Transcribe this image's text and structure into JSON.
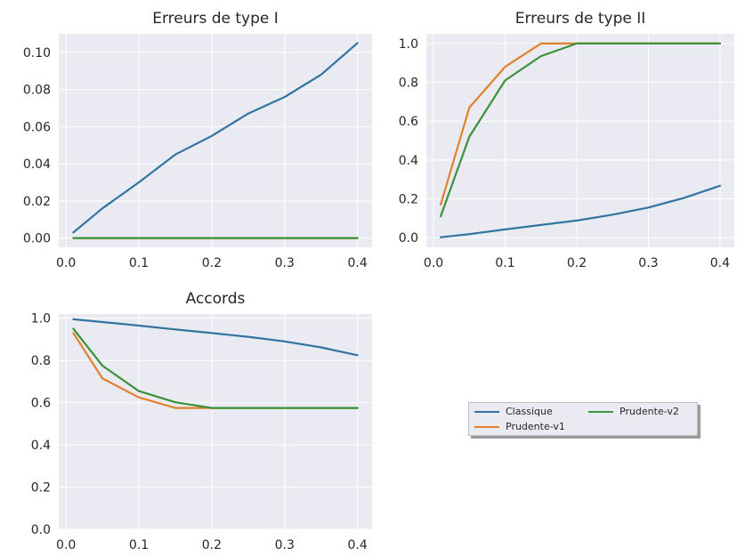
{
  "chart_data": [
    {
      "type": "line",
      "title": "Erreurs de type I",
      "xlabel": "",
      "ylabel": "",
      "xlim": [
        -0.01,
        0.42
      ],
      "ylim": [
        -0.005,
        0.11
      ],
      "xticks": [
        0.0,
        0.1,
        0.2,
        0.3,
        0.4
      ],
      "xtick_labels": [
        "0.0",
        "0.1",
        "0.2",
        "0.3",
        "0.4"
      ],
      "yticks": [
        0.0,
        0.02,
        0.04,
        0.06,
        0.08,
        0.1
      ],
      "ytick_labels": [
        "0.00",
        "0.02",
        "0.04",
        "0.06",
        "0.08",
        "0.10"
      ],
      "grid": true,
      "x": [
        0.01,
        0.05,
        0.1,
        0.15,
        0.2,
        0.25,
        0.3,
        0.35,
        0.4
      ],
      "series": [
        {
          "name": "Classique",
          "color": "#3274a1",
          "values": [
            0.003,
            0.016,
            0.03,
            0.045,
            0.055,
            0.067,
            0.076,
            0.088,
            0.105
          ]
        },
        {
          "name": "Prudente-v1",
          "color": "#e1812c",
          "values": [
            0,
            0,
            0,
            0,
            0,
            0,
            0,
            0,
            0
          ]
        },
        {
          "name": "Prudente-v2",
          "color": "#3a923a",
          "values": [
            0,
            0,
            0,
            0,
            0,
            0,
            0,
            0,
            0
          ]
        }
      ]
    },
    {
      "type": "line",
      "title": "Erreurs de type II",
      "xlabel": "",
      "ylabel": "",
      "xlim": [
        -0.01,
        0.42
      ],
      "ylim": [
        -0.05,
        1.05
      ],
      "xticks": [
        0.0,
        0.1,
        0.2,
        0.3,
        0.4
      ],
      "xtick_labels": [
        "0.0",
        "0.1",
        "0.2",
        "0.3",
        "0.4"
      ],
      "yticks": [
        0.0,
        0.2,
        0.4,
        0.6,
        0.8,
        1.0
      ],
      "ytick_labels": [
        "0.0",
        "0.2",
        "0.4",
        "0.6",
        "0.8",
        "1.0"
      ],
      "grid": true,
      "x": [
        0.01,
        0.05,
        0.1,
        0.15,
        0.2,
        0.25,
        0.3,
        0.35,
        0.4
      ],
      "series": [
        {
          "name": "Classique",
          "color": "#3274a1",
          "values": [
            0.002,
            0.018,
            0.042,
            0.065,
            0.088,
            0.118,
            0.155,
            0.205,
            0.267
          ]
        },
        {
          "name": "Prudente-v1",
          "color": "#e1812c",
          "values": [
            0.17,
            0.67,
            0.88,
            1.0,
            1.0,
            1.0,
            1.0,
            1.0,
            1.0
          ]
        },
        {
          "name": "Prudente-v2",
          "color": "#3a923a",
          "values": [
            0.11,
            0.52,
            0.81,
            0.935,
            1.0,
            1.0,
            1.0,
            1.0,
            1.0
          ]
        }
      ]
    },
    {
      "type": "line",
      "title": "Accords",
      "xlabel": "",
      "ylabel": "",
      "xlim": [
        -0.01,
        0.42
      ],
      "ylim": [
        0.0,
        1.02
      ],
      "xticks": [
        0.0,
        0.1,
        0.2,
        0.3,
        0.4
      ],
      "xtick_labels": [
        "0.0",
        "0.1",
        "0.2",
        "0.3",
        "0.4"
      ],
      "yticks": [
        0.0,
        0.2,
        0.4,
        0.6,
        0.8,
        1.0
      ],
      "ytick_labels": [
        "0.0",
        "0.2",
        "0.4",
        "0.6",
        "0.8",
        "1.0"
      ],
      "grid": true,
      "x": [
        0.01,
        0.05,
        0.1,
        0.15,
        0.2,
        0.25,
        0.3,
        0.35,
        0.4
      ],
      "series": [
        {
          "name": "Classique",
          "color": "#3274a1",
          "values": [
            0.995,
            0.982,
            0.965,
            0.947,
            0.93,
            0.912,
            0.89,
            0.862,
            0.825
          ]
        },
        {
          "name": "Prudente-v1",
          "color": "#e1812c",
          "values": [
            0.93,
            0.715,
            0.625,
            0.575,
            0.575,
            0.575,
            0.575,
            0.575,
            0.575
          ]
        },
        {
          "name": "Prudente-v2",
          "color": "#3a923a",
          "values": [
            0.95,
            0.775,
            0.655,
            0.602,
            0.575,
            0.575,
            0.575,
            0.575,
            0.575
          ]
        }
      ]
    }
  ],
  "legend": {
    "placement": "center-right",
    "ncol": 2,
    "entries": [
      {
        "label": "Classique",
        "color": "#3274a1"
      },
      {
        "label": "Prudente-v1",
        "color": "#e1812c"
      },
      {
        "label": "Prudente-v2",
        "color": "#3a923a"
      }
    ]
  }
}
